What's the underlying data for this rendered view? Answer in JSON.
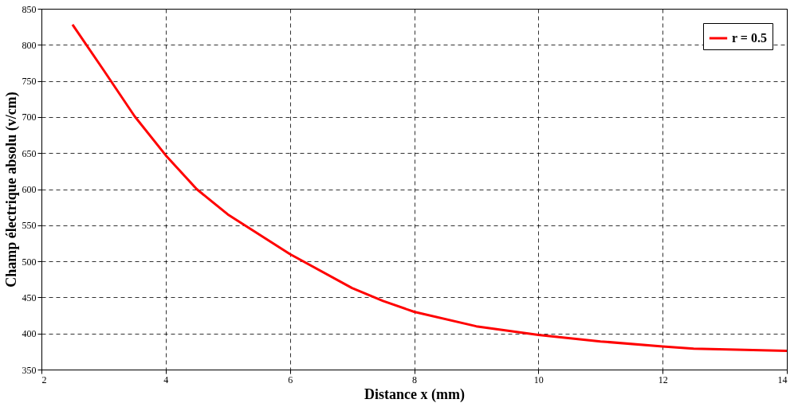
{
  "chart_data": {
    "type": "line",
    "xlabel": "Distance x (mm)",
    "ylabel": "Champ électrique absolu (v/cm)",
    "x": [
      2.5,
      3,
      3.5,
      4,
      4.5,
      5,
      6,
      7,
      7.5,
      8,
      9,
      10,
      11,
      12,
      12.5,
      14
    ],
    "series": [
      {
        "name": "r = 0.5",
        "color": "#ff0000",
        "values": [
          828,
          765,
          701,
          647,
          600,
          565,
          510,
          463,
          445,
          430,
          410,
          398,
          389,
          382,
          379,
          376
        ]
      }
    ],
    "xlim": [
      2,
      14
    ],
    "xticks": [
      2,
      4,
      6,
      8,
      10,
      12,
      14
    ],
    "ylim": [
      350,
      850
    ],
    "yticks": [
      350,
      400,
      450,
      500,
      550,
      600,
      650,
      700,
      750,
      800,
      850
    ],
    "grid": true,
    "legend": "top right",
    "marker": "none",
    "line_style": "solid"
  }
}
